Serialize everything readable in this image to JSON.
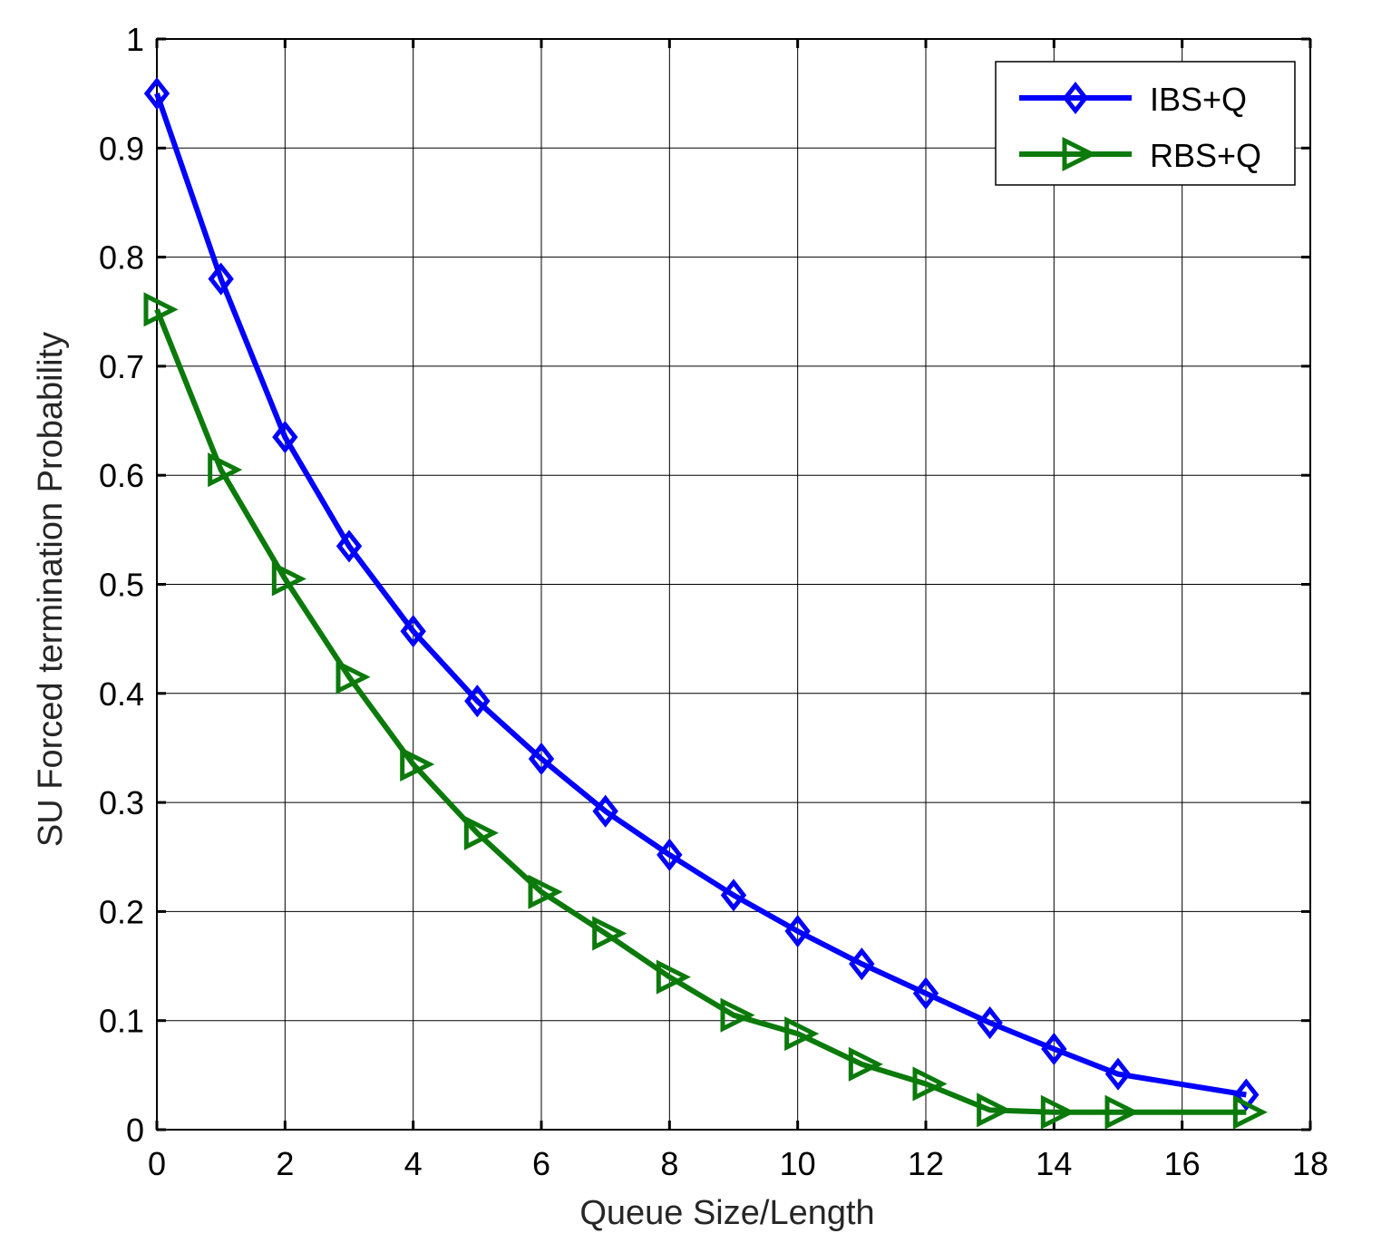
{
  "chart_data": {
    "type": "line",
    "title": "",
    "xlabel": "Queue Size/Length",
    "ylabel": "SU Forced termination Probability",
    "xlim": [
      0,
      18
    ],
    "ylim": [
      0,
      1
    ],
    "xticks": [
      0,
      2,
      4,
      6,
      8,
      10,
      12,
      14,
      16,
      18
    ],
    "yticks": [
      0,
      0.1,
      0.2,
      0.3,
      0.4,
      0.5,
      0.6,
      0.7,
      0.8,
      0.9,
      1
    ],
    "xtick_labels": [
      "0",
      "2",
      "4",
      "6",
      "8",
      "10",
      "12",
      "14",
      "16",
      "18"
    ],
    "ytick_labels": [
      "0",
      "0.1",
      "0.2",
      "0.3",
      "0.4",
      "0.5",
      "0.6",
      "0.7",
      "0.8",
      "0.9",
      "1"
    ],
    "grid": true,
    "legend_position": "top-right",
    "series": [
      {
        "name": "IBS+Q",
        "color": "#0000ff",
        "marker": "diamond",
        "x": [
          0,
          1,
          2,
          3,
          4,
          5,
          6,
          7,
          8,
          9,
          10,
          11,
          12,
          13,
          14,
          15,
          17
        ],
        "y": [
          0.95,
          0.78,
          0.635,
          0.535,
          0.457,
          0.393,
          0.34,
          0.292,
          0.252,
          0.215,
          0.182,
          0.152,
          0.125,
          0.098,
          0.074,
          0.051,
          0.032
        ]
      },
      {
        "name": "RBS+Q",
        "color": "#0b7a0b",
        "marker": "triangle-right",
        "x": [
          0,
          1,
          2,
          3,
          4,
          5,
          6,
          7,
          8,
          9,
          10,
          11,
          12,
          13,
          14,
          15,
          17
        ],
        "y": [
          0.752,
          0.605,
          0.505,
          0.415,
          0.335,
          0.272,
          0.218,
          0.18,
          0.14,
          0.105,
          0.088,
          0.06,
          0.042,
          0.018,
          0.016,
          0.016,
          0.016
        ]
      }
    ]
  }
}
